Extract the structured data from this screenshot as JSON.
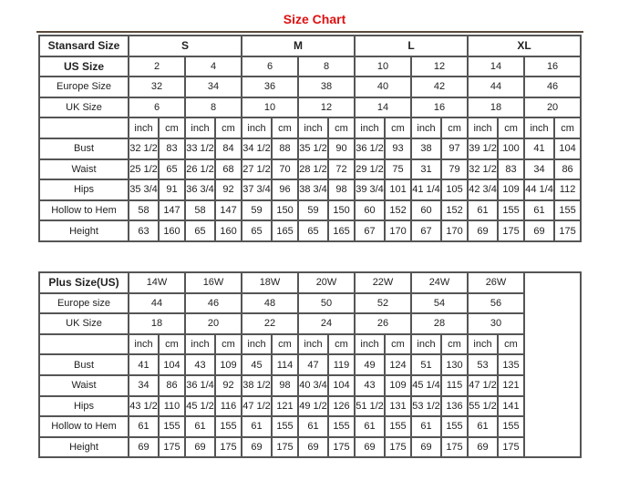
{
  "title": "Size Chart",
  "standard": {
    "header_label": "Stansard Size",
    "groups": [
      "S",
      "M",
      "L",
      "XL"
    ],
    "size_rows": [
      {
        "label": "US Size",
        "bold": true,
        "values": [
          "2",
          "4",
          "6",
          "8",
          "10",
          "12",
          "14",
          "16"
        ]
      },
      {
        "label": "Europe Size",
        "values": [
          "32",
          "34",
          "36",
          "38",
          "40",
          "42",
          "44",
          "46"
        ]
      },
      {
        "label": "UK Size",
        "values": [
          "6",
          "8",
          "10",
          "12",
          "14",
          "16",
          "18",
          "20"
        ]
      }
    ],
    "units": [
      "inch",
      "cm"
    ],
    "measure_rows": [
      {
        "label": "Bust",
        "values": [
          "32 1/2",
          "83",
          "33 1/2",
          "84",
          "34 1/2",
          "88",
          "35 1/2",
          "90",
          "36 1/2",
          "93",
          "38",
          "97",
          "39 1/2",
          "100",
          "41",
          "104"
        ]
      },
      {
        "label": "Waist",
        "values": [
          "25 1/2",
          "65",
          "26 1/2",
          "68",
          "27 1/2",
          "70",
          "28 1/2",
          "72",
          "29 1/2",
          "75",
          "31",
          "79",
          "32 1/2",
          "83",
          "34",
          "86"
        ]
      },
      {
        "label": "Hips",
        "values": [
          "35 3/4",
          "91",
          "36 3/4",
          "92",
          "37 3/4",
          "96",
          "38 3/4",
          "98",
          "39 3/4",
          "101",
          "41 1/4",
          "105",
          "42 3/4",
          "109",
          "44 1/4",
          "112"
        ]
      },
      {
        "label": "Hollow to Hem",
        "values": [
          "58",
          "147",
          "58",
          "147",
          "59",
          "150",
          "59",
          "150",
          "60",
          "152",
          "60",
          "152",
          "61",
          "155",
          "61",
          "155"
        ]
      },
      {
        "label": "Height",
        "values": [
          "63",
          "160",
          "65",
          "160",
          "65",
          "165",
          "65",
          "165",
          "67",
          "170",
          "67",
          "170",
          "69",
          "175",
          "69",
          "175"
        ]
      }
    ]
  },
  "plus": {
    "header_label": "Plus Size(US)",
    "sizes": [
      "14W",
      "16W",
      "18W",
      "20W",
      "22W",
      "24W",
      "26W"
    ],
    "size_rows": [
      {
        "label": "Europe size",
        "values": [
          "44",
          "46",
          "48",
          "50",
          "52",
          "54",
          "56"
        ]
      },
      {
        "label": "UK Size",
        "values": [
          "18",
          "20",
          "22",
          "24",
          "26",
          "28",
          "30"
        ]
      }
    ],
    "units": [
      "inch",
      "cm"
    ],
    "measure_rows": [
      {
        "label": "Bust",
        "values": [
          "41",
          "104",
          "43",
          "109",
          "45",
          "114",
          "47",
          "119",
          "49",
          "124",
          "51",
          "130",
          "53",
          "135"
        ]
      },
      {
        "label": "Waist",
        "values": [
          "34",
          "86",
          "36 1/4",
          "92",
          "38 1/2",
          "98",
          "40 3/4",
          "104",
          "43",
          "109",
          "45 1/4",
          "115",
          "47 1/2",
          "121"
        ]
      },
      {
        "label": "Hips",
        "values": [
          "43 1/2",
          "110",
          "45 1/2",
          "116",
          "47 1/2",
          "121",
          "49 1/2",
          "126",
          "51 1/2",
          "131",
          "53 1/2",
          "136",
          "55 1/2",
          "141"
        ]
      },
      {
        "label": "Hollow to Hem",
        "values": [
          "61",
          "155",
          "61",
          "155",
          "61",
          "155",
          "61",
          "155",
          "61",
          "155",
          "61",
          "155",
          "61",
          "155"
        ]
      },
      {
        "label": "Height",
        "values": [
          "69",
          "175",
          "69",
          "175",
          "69",
          "175",
          "69",
          "175",
          "69",
          "175",
          "69",
          "175",
          "69",
          "175"
        ]
      }
    ]
  }
}
